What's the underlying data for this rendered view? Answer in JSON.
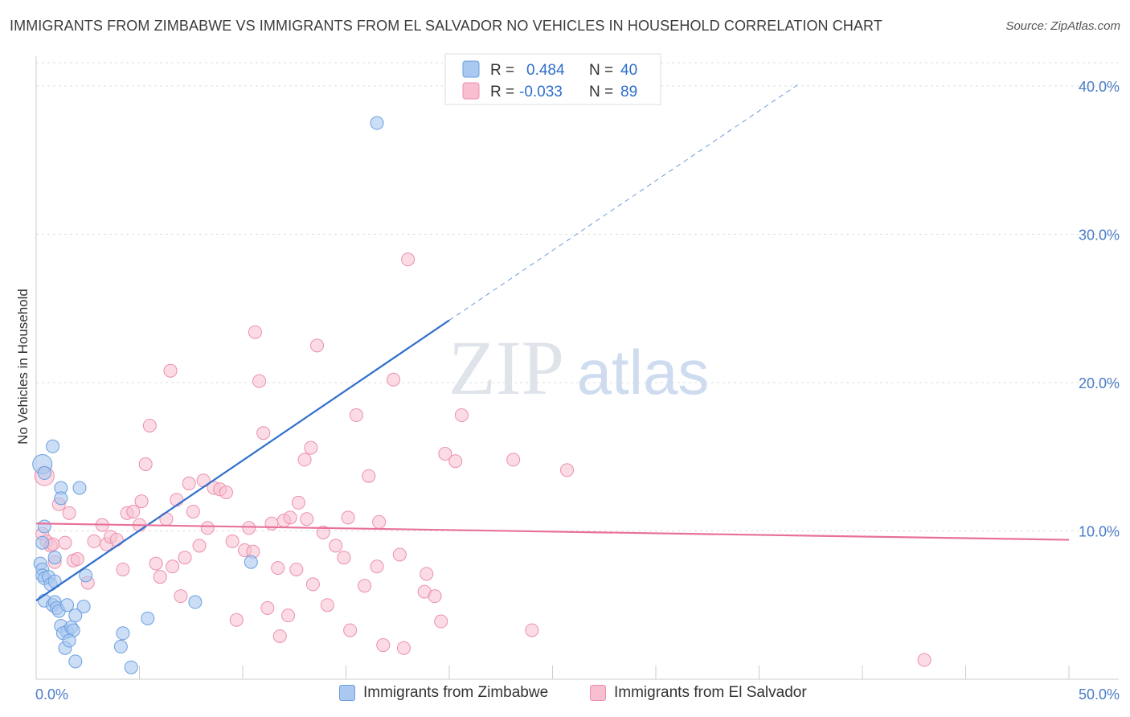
{
  "title": "IMMIGRANTS FROM ZIMBABWE VS IMMIGRANTS FROM EL SALVADOR NO VEHICLES IN HOUSEHOLD CORRELATION CHART",
  "source": "Source: ZipAtlas.com",
  "watermark": {
    "zip": "ZIP",
    "atlas": "atlas"
  },
  "legend_top": [
    {
      "r_label": "R =",
      "r_value": "0.484",
      "n_label": "N =",
      "n_value": "40"
    },
    {
      "r_label": "R =",
      "r_value": "-0.033",
      "n_label": "N =",
      "n_value": "89"
    }
  ],
  "legend_bottom": [
    {
      "label": "Immigrants from Zimbabwe"
    },
    {
      "label": "Immigrants from El Salvador"
    }
  ],
  "colors": {
    "blue_fill": "#aac8f0",
    "blue_stroke": "#6a9fe0",
    "blue_line": "#2f6fcc",
    "pink_fill": "#f7bfcf",
    "pink_stroke": "#ec8fae",
    "pink_line": "#e8719a",
    "axis_text": "#4a7cc7",
    "grid": "#dddddd"
  },
  "chart_data": {
    "type": "scatter",
    "title": "IMMIGRANTS FROM ZIMBABWE VS IMMIGRANTS FROM EL SALVADOR NO VEHICLES IN HOUSEHOLD CORRELATION CHART",
    "xlabel": "",
    "ylabel": "No Vehicles in Household",
    "xlim": [
      0,
      50
    ],
    "ylim": [
      0,
      42
    ],
    "x_tick_labels": [
      "0.0%",
      "50.0%"
    ],
    "y_ticks": [
      10,
      20,
      30,
      40
    ],
    "y_tick_labels": [
      "10.0%",
      "20.0%",
      "30.0%",
      "40.0%"
    ],
    "grid": true,
    "series": [
      {
        "name": "Immigrants from Zimbabwe",
        "color": "#aac8f0",
        "trend": {
          "x": [
            0,
            20
          ],
          "y": [
            5.3,
            24.2
          ],
          "dashed_to": [
            37,
            40.2
          ]
        },
        "points": [
          [
            0.3,
            14.5
          ],
          [
            0.4,
            13.9
          ],
          [
            0.8,
            15.7
          ],
          [
            1.2,
            12.9
          ],
          [
            1.2,
            12.2
          ],
          [
            2.1,
            12.9
          ],
          [
            0.4,
            10.3
          ],
          [
            0.3,
            9.2
          ],
          [
            0.2,
            7.8
          ],
          [
            0.3,
            7.4
          ],
          [
            0.9,
            8.2
          ],
          [
            0.3,
            7.0
          ],
          [
            0.4,
            6.8
          ],
          [
            0.6,
            6.9
          ],
          [
            0.7,
            6.4
          ],
          [
            0.9,
            6.6
          ],
          [
            2.4,
            7.0
          ],
          [
            0.4,
            5.3
          ],
          [
            0.8,
            5.0
          ],
          [
            0.9,
            5.2
          ],
          [
            1.0,
            4.8
          ],
          [
            1.1,
            4.6
          ],
          [
            1.5,
            5.0
          ],
          [
            2.3,
            4.9
          ],
          [
            1.2,
            3.6
          ],
          [
            1.5,
            3.2
          ],
          [
            1.3,
            3.1
          ],
          [
            1.7,
            3.5
          ],
          [
            1.8,
            3.3
          ],
          [
            1.9,
            4.3
          ],
          [
            1.4,
            2.1
          ],
          [
            1.6,
            2.6
          ],
          [
            1.9,
            1.2
          ],
          [
            4.2,
            3.1
          ],
          [
            4.1,
            2.2
          ],
          [
            5.4,
            4.1
          ],
          [
            4.6,
            0.8
          ],
          [
            7.7,
            5.2
          ],
          [
            10.4,
            7.9
          ],
          [
            16.5,
            37.5
          ]
        ]
      },
      {
        "name": "Immigrants from El Salvador",
        "color": "#f7bfcf",
        "trend": {
          "x": [
            0,
            50
          ],
          "y": [
            10.5,
            9.4
          ]
        },
        "points": [
          [
            0.4,
            13.7
          ],
          [
            0.3,
            9.8
          ],
          [
            0.5,
            9.3
          ],
          [
            0.7,
            9.0
          ],
          [
            0.8,
            9.1
          ],
          [
            0.9,
            7.9
          ],
          [
            1.1,
            11.8
          ],
          [
            1.6,
            11.2
          ],
          [
            1.4,
            9.2
          ],
          [
            1.8,
            8.0
          ],
          [
            2.0,
            8.1
          ],
          [
            2.5,
            6.5
          ],
          [
            2.8,
            9.3
          ],
          [
            3.2,
            10.4
          ],
          [
            3.4,
            9.1
          ],
          [
            3.6,
            9.6
          ],
          [
            3.9,
            9.4
          ],
          [
            4.2,
            7.4
          ],
          [
            4.4,
            11.2
          ],
          [
            4.7,
            11.3
          ],
          [
            5.0,
            10.4
          ],
          [
            5.1,
            12.0
          ],
          [
            5.3,
            14.5
          ],
          [
            5.5,
            17.1
          ],
          [
            5.8,
            7.8
          ],
          [
            6.0,
            6.9
          ],
          [
            6.3,
            10.8
          ],
          [
            6.5,
            20.8
          ],
          [
            6.6,
            7.6
          ],
          [
            6.8,
            12.1
          ],
          [
            7.0,
            5.6
          ],
          [
            7.2,
            8.2
          ],
          [
            7.4,
            13.2
          ],
          [
            7.6,
            11.3
          ],
          [
            7.9,
            9.0
          ],
          [
            8.1,
            13.4
          ],
          [
            8.3,
            10.2
          ],
          [
            8.6,
            12.9
          ],
          [
            8.9,
            12.8
          ],
          [
            9.2,
            12.6
          ],
          [
            9.5,
            9.3
          ],
          [
            9.7,
            4.0
          ],
          [
            10.1,
            8.7
          ],
          [
            10.3,
            10.2
          ],
          [
            10.5,
            8.6
          ],
          [
            10.6,
            23.4
          ],
          [
            10.8,
            20.1
          ],
          [
            11.0,
            16.6
          ],
          [
            11.2,
            4.8
          ],
          [
            11.4,
            10.5
          ],
          [
            11.7,
            7.5
          ],
          [
            11.8,
            2.9
          ],
          [
            12.0,
            10.7
          ],
          [
            12.2,
            4.3
          ],
          [
            12.3,
            10.9
          ],
          [
            12.6,
            7.4
          ],
          [
            12.7,
            11.9
          ],
          [
            13.0,
            14.8
          ],
          [
            13.1,
            10.8
          ],
          [
            13.3,
            15.6
          ],
          [
            13.4,
            6.4
          ],
          [
            13.6,
            22.5
          ],
          [
            13.9,
            9.9
          ],
          [
            14.1,
            5.0
          ],
          [
            14.5,
            9.0
          ],
          [
            14.9,
            8.2
          ],
          [
            15.1,
            10.9
          ],
          [
            15.2,
            3.3
          ],
          [
            15.5,
            17.8
          ],
          [
            15.9,
            6.3
          ],
          [
            16.1,
            13.7
          ],
          [
            16.5,
            7.6
          ],
          [
            16.6,
            10.6
          ],
          [
            16.8,
            2.3
          ],
          [
            17.3,
            20.2
          ],
          [
            17.6,
            8.4
          ],
          [
            17.8,
            2.1
          ],
          [
            18.0,
            28.3
          ],
          [
            18.8,
            5.9
          ],
          [
            18.9,
            7.1
          ],
          [
            19.3,
            5.6
          ],
          [
            19.6,
            3.9
          ],
          [
            19.8,
            15.2
          ],
          [
            20.3,
            14.7
          ],
          [
            20.6,
            17.8
          ],
          [
            23.1,
            14.8
          ],
          [
            24.0,
            3.3
          ],
          [
            25.7,
            14.1
          ],
          [
            43.0,
            1.3
          ]
        ]
      }
    ]
  }
}
